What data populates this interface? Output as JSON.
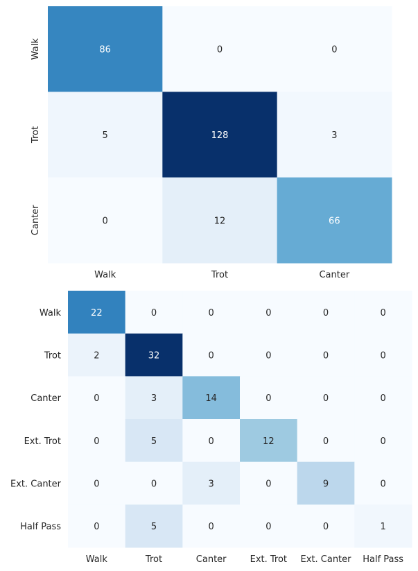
{
  "chart_data": [
    {
      "type": "heatmap",
      "title": "",
      "xlabel": "",
      "ylabel": "",
      "colormap": "Blues",
      "row_labels": [
        "Walk",
        "Trot",
        "Canter"
      ],
      "col_labels": [
        "Walk",
        "Trot",
        "Canter"
      ],
      "values": [
        [
          86,
          0,
          0
        ],
        [
          5,
          128,
          3
        ],
        [
          0,
          12,
          66
        ]
      ],
      "vmin": 0,
      "vmax": 128,
      "row_label_rotation": "vertical"
    },
    {
      "type": "heatmap",
      "title": "",
      "xlabel": "",
      "ylabel": "",
      "colormap": "Blues",
      "row_labels": [
        "Walk",
        "Trot",
        "Canter",
        "Ext. Trot",
        "Ext. Canter",
        "Half Pass"
      ],
      "col_labels": [
        "Walk",
        "Trot",
        "Canter",
        "Ext. Trot",
        "Ext. Canter",
        "Half Pass"
      ],
      "values": [
        [
          22,
          0,
          0,
          0,
          0,
          0
        ],
        [
          2,
          32,
          0,
          0,
          0,
          0
        ],
        [
          0,
          3,
          14,
          0,
          0,
          0
        ],
        [
          0,
          5,
          0,
          12,
          0,
          0
        ],
        [
          0,
          0,
          3,
          0,
          9,
          0
        ],
        [
          0,
          5,
          0,
          0,
          0,
          1
        ]
      ],
      "vmin": 0,
      "vmax": 32,
      "row_label_rotation": "horizontal"
    }
  ],
  "colors": {
    "blues_low": "#f7fbff",
    "blues_high": "#08306b",
    "text_dark": "#262626",
    "text_light": "#ffffff"
  }
}
